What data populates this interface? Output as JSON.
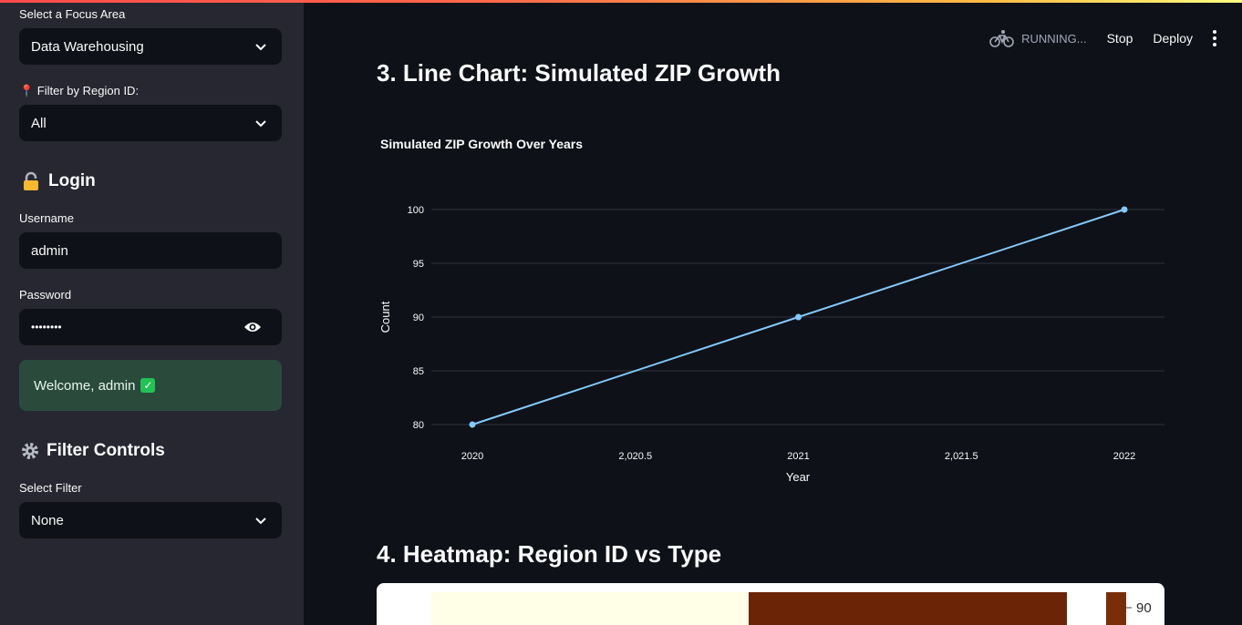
{
  "sidebar": {
    "focus_label": "Select a Focus Area",
    "focus_value": "Data Warehousing",
    "region_label": "📍 Filter by Region ID:",
    "region_value": "All",
    "login_heading": "Login",
    "login_icon": "lock-emoji",
    "username_label": "Username",
    "username_value": "admin",
    "password_label": "Password",
    "password_value": "••••••••",
    "welcome_text": "Welcome, admin",
    "filter_heading": "Filter Controls",
    "filter_icon": "gear-icon",
    "select_filter_label": "Select Filter",
    "select_filter_value": "None"
  },
  "toolbar": {
    "running": "RUNNING...",
    "stop": "Stop",
    "deploy": "Deploy"
  },
  "main": {
    "line_heading": "3. Line Chart: Simulated ZIP Growth",
    "heatmap_heading": "4. Heatmap: Region ID vs Type"
  },
  "chart_data": {
    "type": "line",
    "title": "Simulated ZIP Growth Over Years",
    "xlabel": "Year",
    "ylabel": "Count",
    "x": [
      2020,
      2021,
      2022
    ],
    "y": [
      80,
      90,
      100
    ],
    "x_ticks": [
      "2020",
      "2,020.5",
      "2021",
      "2,021.5",
      "2022"
    ],
    "x_tick_values": [
      2020,
      2020.5,
      2021,
      2021.5,
      2022
    ],
    "y_ticks": [
      80,
      85,
      90,
      95,
      100
    ],
    "xlim": [
      2020,
      2022
    ],
    "ylim": [
      80,
      100
    ],
    "grid": true,
    "line_color": "#83c9ff"
  },
  "heatmap_partial": {
    "colorbar_tick": "90",
    "colors": [
      "#fffee6",
      "#6b2406",
      "#7a2e08"
    ]
  }
}
